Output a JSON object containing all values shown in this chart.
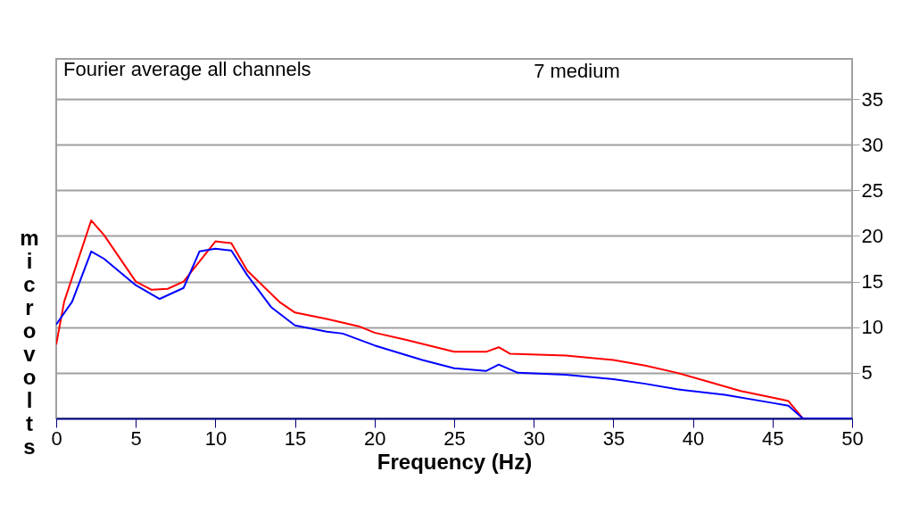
{
  "chart_data": {
    "type": "line",
    "title": "Fourier average all channels",
    "annotations": [
      "7 medium"
    ],
    "xlabel": "Frequency (Hz)",
    "ylabel": "microvolts",
    "xlim": [
      0,
      50
    ],
    "xticks": [
      0,
      5,
      10,
      15,
      20,
      25,
      30,
      35,
      40,
      45,
      50
    ],
    "ylim": [
      0,
      39.4
    ],
    "yticks": [
      5,
      10,
      15,
      20,
      25,
      30,
      35
    ],
    "grid": "y",
    "series": [
      {
        "color": "#ff0000",
        "x": [
          0,
          0.5,
          2.2,
          3,
          5,
          6,
          7,
          8,
          9,
          10,
          11,
          12,
          14,
          15,
          17,
          19,
          20,
          22,
          25,
          27,
          27.8,
          28.5,
          32,
          35,
          37,
          39,
          41,
          43,
          45.5,
          46,
          46.9,
          50
        ],
        "values": [
          8.1,
          12.8,
          21.7,
          20.1,
          15.0,
          14.1,
          14.2,
          15.0,
          17.2,
          19.4,
          19.2,
          16.2,
          12.8,
          11.6,
          10.9,
          10.1,
          9.4,
          8.6,
          7.3,
          7.3,
          7.8,
          7.1,
          6.9,
          6.4,
          5.8,
          5.0,
          4.0,
          3.0,
          2.1,
          1.9,
          0,
          0
        ]
      },
      {
        "color": "#0000ff",
        "x": [
          0,
          1,
          2.2,
          3,
          5,
          6.5,
          8,
          9,
          10,
          11,
          12,
          13.5,
          15,
          17,
          18,
          20,
          23,
          25,
          27,
          27.8,
          29,
          32,
          35,
          37,
          39,
          42,
          45,
          46,
          46.9,
          50
        ],
        "values": [
          10.3,
          12.8,
          18.3,
          17.5,
          14.6,
          13.1,
          14.3,
          18.3,
          18.6,
          18.4,
          15.7,
          12.2,
          10.2,
          9.5,
          9.3,
          8.0,
          6.4,
          5.5,
          5.2,
          5.9,
          5.0,
          4.8,
          4.3,
          3.8,
          3.2,
          2.6,
          1.7,
          1.4,
          0,
          0
        ]
      }
    ]
  }
}
